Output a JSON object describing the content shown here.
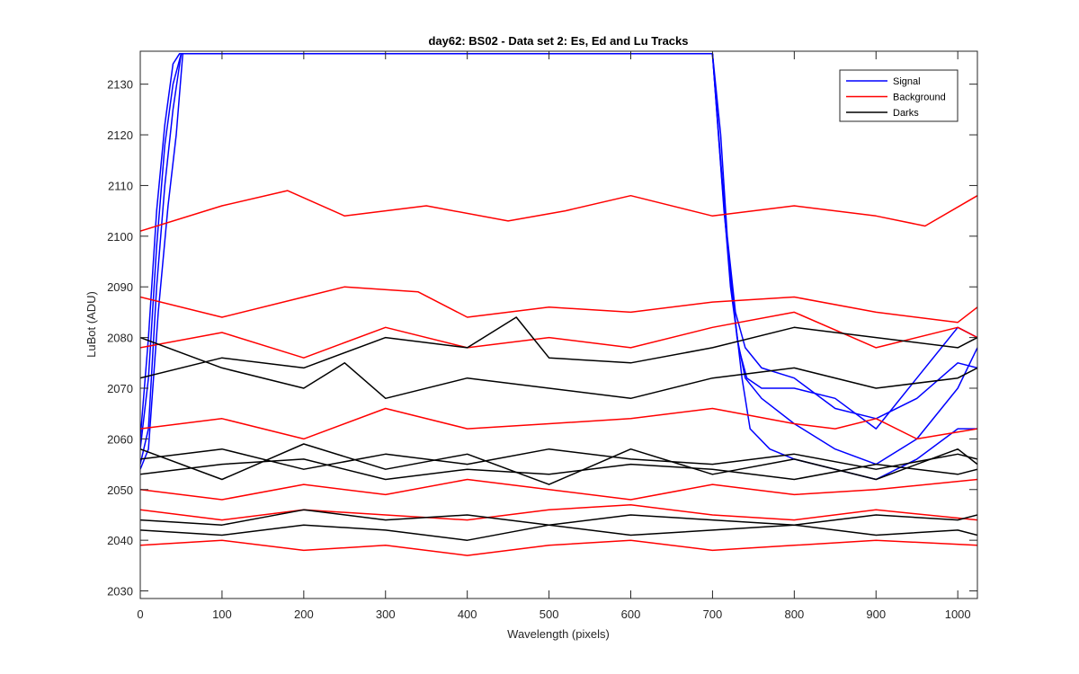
{
  "chart_data": {
    "type": "line",
    "title": "day62: BS02 - Data set 2: Es, Ed and Lu Tracks",
    "xlabel": "Wavelength (pixels)",
    "ylabel": "LuBot (ADU)",
    "xlim": [
      0,
      1024
    ],
    "ylim": [
      2028.5,
      2136.5
    ],
    "xticks": [
      0,
      100,
      200,
      300,
      400,
      500,
      600,
      700,
      800,
      900,
      1000
    ],
    "yticks": [
      2030,
      2040,
      2050,
      2060,
      2070,
      2080,
      2090,
      2100,
      2110,
      2120,
      2130
    ],
    "grid": false,
    "legend_position": "top-right",
    "legend": [
      {
        "name": "Signal",
        "color": "#0000ff"
      },
      {
        "name": "Background",
        "color": "#ff0000"
      },
      {
        "name": "Darks",
        "color": "#000000"
      }
    ],
    "series": [
      {
        "name": "Signal",
        "color": "#0000ff",
        "x": [
          0,
          10,
          20,
          30,
          40,
          50,
          55,
          60,
          700,
          710,
          720,
          730,
          740,
          760,
          800,
          850,
          900,
          950,
          1000,
          1024
        ],
        "y": [
          2055,
          2062,
          2090,
          2110,
          2125,
          2136,
          2136,
          2136,
          2136,
          2115,
          2095,
          2080,
          2072,
          2068,
          2063,
          2058,
          2055,
          2060,
          2070,
          2078
        ]
      },
      {
        "name": "Signal",
        "color": "#0000ff",
        "x": [
          0,
          10,
          20,
          30,
          40,
          50,
          60,
          700,
          712,
          722,
          732,
          742,
          760,
          800,
          850,
          900,
          950,
          1000,
          1024
        ],
        "y": [
          2058,
          2072,
          2098,
          2118,
          2130,
          2136,
          2136,
          2136,
          2110,
          2090,
          2078,
          2072,
          2070,
          2070,
          2068,
          2062,
          2072,
          2082,
          2080
        ]
      },
      {
        "name": "Signal",
        "color": "#0000ff",
        "x": [
          0,
          10,
          20,
          30,
          40,
          48,
          56,
          700,
          710,
          718,
          728,
          740,
          760,
          800,
          850,
          900,
          950,
          1000,
          1024
        ],
        "y": [
          2060,
          2080,
          2105,
          2122,
          2134,
          2136,
          2136,
          2136,
          2120,
          2100,
          2085,
          2078,
          2074,
          2072,
          2066,
          2064,
          2068,
          2075,
          2074
        ]
      },
      {
        "name": "Signal",
        "color": "#0000ff",
        "x": [
          0,
          10,
          22,
          34,
          44,
          52,
          60,
          700,
          714,
          726,
          736,
          746,
          770,
          800,
          850,
          900,
          950,
          1000,
          1024
        ],
        "y": [
          2054,
          2058,
          2085,
          2106,
          2120,
          2136,
          2136,
          2136,
          2105,
          2086,
          2072,
          2062,
          2058,
          2056,
          2054,
          2052,
          2056,
          2062,
          2062
        ]
      },
      {
        "name": "Background",
        "color": "#ff0000",
        "x": [
          0,
          100,
          180,
          250,
          350,
          450,
          520,
          600,
          700,
          800,
          900,
          960,
          1024
        ],
        "y": [
          2101,
          2106,
          2109,
          2104,
          2106,
          2103,
          2105,
          2108,
          2104,
          2106,
          2104,
          2102,
          2108
        ]
      },
      {
        "name": "Background",
        "color": "#ff0000",
        "x": [
          0,
          100,
          200,
          250,
          340,
          400,
          500,
          600,
          700,
          800,
          900,
          1000,
          1024
        ],
        "y": [
          2088,
          2084,
          2088,
          2090,
          2089,
          2084,
          2086,
          2085,
          2087,
          2088,
          2085,
          2083,
          2086
        ]
      },
      {
        "name": "Background",
        "color": "#ff0000",
        "x": [
          0,
          100,
          200,
          300,
          400,
          500,
          600,
          700,
          800,
          900,
          1000,
          1024
        ],
        "y": [
          2078,
          2081,
          2076,
          2082,
          2078,
          2080,
          2078,
          2082,
          2085,
          2078,
          2082,
          2080
        ]
      },
      {
        "name": "Background",
        "color": "#ff0000",
        "x": [
          0,
          100,
          200,
          300,
          400,
          500,
          600,
          700,
          800,
          850,
          900,
          950,
          1024
        ],
        "y": [
          2062,
          2064,
          2060,
          2066,
          2062,
          2063,
          2064,
          2066,
          2063,
          2062,
          2064,
          2060,
          2062
        ]
      },
      {
        "name": "Background",
        "color": "#ff0000",
        "x": [
          0,
          100,
          200,
          300,
          400,
          500,
          600,
          700,
          800,
          900,
          1024
        ],
        "y": [
          2050,
          2048,
          2051,
          2049,
          2052,
          2050,
          2048,
          2051,
          2049,
          2050,
          2052
        ]
      },
      {
        "name": "Background",
        "color": "#ff0000",
        "x": [
          0,
          100,
          200,
          300,
          400,
          500,
          600,
          700,
          800,
          900,
          1024
        ],
        "y": [
          2046,
          2044,
          2046,
          2045,
          2044,
          2046,
          2047,
          2045,
          2044,
          2046,
          2044
        ]
      },
      {
        "name": "Background",
        "color": "#ff0000",
        "x": [
          0,
          100,
          200,
          300,
          400,
          500,
          600,
          700,
          800,
          900,
          1024
        ],
        "y": [
          2039,
          2040,
          2038,
          2039,
          2037,
          2039,
          2040,
          2038,
          2039,
          2040,
          2039
        ]
      },
      {
        "name": "Darks",
        "color": "#000000",
        "x": [
          0,
          100,
          200,
          300,
          400,
          460,
          500,
          600,
          700,
          800,
          900,
          1000,
          1024
        ],
        "y": [
          2072,
          2076,
          2074,
          2080,
          2078,
          2084,
          2076,
          2075,
          2078,
          2082,
          2080,
          2078,
          2080
        ]
      },
      {
        "name": "Darks",
        "color": "#000000",
        "x": [
          0,
          100,
          200,
          250,
          300,
          400,
          500,
          600,
          700,
          800,
          900,
          1000,
          1024
        ],
        "y": [
          2080,
          2074,
          2070,
          2075,
          2068,
          2072,
          2070,
          2068,
          2072,
          2074,
          2070,
          2072,
          2074
        ]
      },
      {
        "name": "Darks",
        "color": "#000000",
        "x": [
          0,
          100,
          200,
          300,
          400,
          500,
          600,
          700,
          800,
          900,
          1000,
          1024
        ],
        "y": [
          2056,
          2058,
          2054,
          2057,
          2055,
          2058,
          2056,
          2055,
          2057,
          2054,
          2057,
          2056
        ]
      },
      {
        "name": "Darks",
        "color": "#000000",
        "x": [
          0,
          100,
          200,
          300,
          400,
          500,
          600,
          700,
          800,
          900,
          1000,
          1024
        ],
        "y": [
          2053,
          2055,
          2056,
          2052,
          2054,
          2053,
          2055,
          2054,
          2052,
          2055,
          2053,
          2054
        ]
      },
      {
        "name": "Darks",
        "color": "#000000",
        "x": [
          0,
          100,
          200,
          300,
          400,
          500,
          600,
          700,
          800,
          900,
          1000,
          1024
        ],
        "y": [
          2058,
          2052,
          2059,
          2054,
          2057,
          2051,
          2058,
          2053,
          2056,
          2052,
          2058,
          2055
        ]
      },
      {
        "name": "Darks",
        "color": "#000000",
        "x": [
          0,
          100,
          200,
          300,
          400,
          500,
          600,
          700,
          800,
          900,
          1000,
          1024
        ],
        "y": [
          2044,
          2043,
          2046,
          2044,
          2045,
          2043,
          2045,
          2044,
          2043,
          2045,
          2044,
          2045
        ]
      },
      {
        "name": "Darks",
        "color": "#000000",
        "x": [
          0,
          100,
          200,
          300,
          400,
          500,
          600,
          700,
          800,
          900,
          1000,
          1024
        ],
        "y": [
          2042,
          2041,
          2043,
          2042,
          2040,
          2043,
          2041,
          2042,
          2043,
          2041,
          2042,
          2041
        ]
      }
    ]
  }
}
